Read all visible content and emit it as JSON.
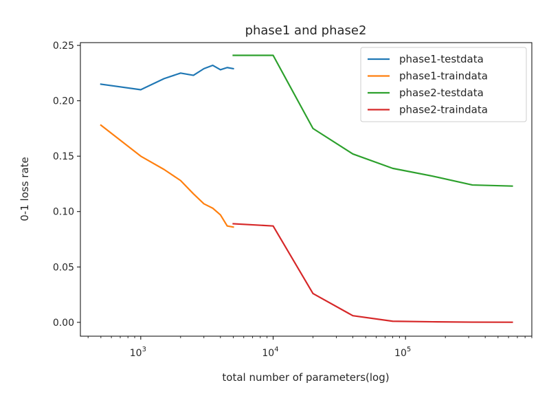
{
  "chart_data": {
    "type": "line",
    "title": "phase1 and phase2",
    "xlabel": "total number of parameters(log)",
    "ylabel": "0-1 loss rate",
    "xscale": "log",
    "xlim": [
      350,
      900000
    ],
    "ylim": [
      -0.0125,
      0.2525
    ],
    "yticks": [
      0.0,
      0.05,
      0.1,
      0.15,
      0.2,
      0.25
    ],
    "ytick_labels": [
      "0.00",
      "0.05",
      "0.10",
      "0.15",
      "0.20",
      "0.25"
    ],
    "xticks": [
      1000,
      10000,
      100000
    ],
    "xtick_labels": [
      {
        "base": "10",
        "exp": "3"
      },
      {
        "base": "10",
        "exp": "4"
      },
      {
        "base": "10",
        "exp": "5"
      }
    ],
    "legend_position": "upper right",
    "grid": false,
    "series": [
      {
        "name": "phase1-testdata",
        "color": "#1f77b4",
        "x": [
          500,
          1000,
          1500,
          2000,
          2500,
          3000,
          3500,
          4000,
          4500,
          5000
        ],
        "y": [
          0.215,
          0.21,
          0.22,
          0.225,
          0.223,
          0.229,
          0.232,
          0.228,
          0.23,
          0.229
        ]
      },
      {
        "name": "phase1-traindata",
        "color": "#ff7f0e",
        "x": [
          500,
          1000,
          1500,
          2000,
          2500,
          3000,
          3500,
          4000,
          4500,
          5000
        ],
        "y": [
          0.178,
          0.15,
          0.138,
          0.128,
          0.116,
          0.107,
          0.103,
          0.097,
          0.087,
          0.086
        ]
      },
      {
        "name": "phase2-testdata",
        "color": "#2ca02c",
        "x": [
          5000,
          10000,
          20000,
          40000,
          80000,
          160000,
          320000,
          640000
        ],
        "y": [
          0.241,
          0.241,
          0.175,
          0.152,
          0.139,
          0.132,
          0.124,
          0.123
        ]
      },
      {
        "name": "phase2-traindata",
        "color": "#d62728",
        "x": [
          5000,
          10000,
          20000,
          40000,
          80000,
          160000,
          320000,
          640000
        ],
        "y": [
          0.089,
          0.087,
          0.026,
          0.006,
          0.001,
          0.0005,
          0.0002,
          0.0001
        ]
      }
    ]
  }
}
